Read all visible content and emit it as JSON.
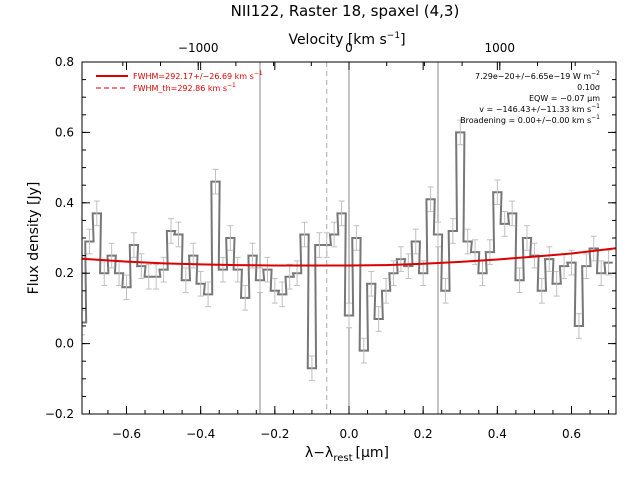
{
  "chart_data": {
    "type": "line",
    "title": "NII122, Raster 18, spaxel (4,3)",
    "xlabel": "λ−λ",
    "xlabel_sub": "rest",
    "xlabel_unit": "[μm]",
    "ylabel": "Flux density [Jy]",
    "top_axis_label": "Velocity [km s",
    "top_axis_label_sup": "−1",
    "top_axis_label_end": "]",
    "xlim": [
      -0.72,
      0.72
    ],
    "ylim": [
      -0.2,
      0.8
    ],
    "grid": false,
    "x_ticks": [
      -0.6,
      -0.4,
      -0.2,
      0.0,
      0.2,
      0.4,
      0.6
    ],
    "x_tick_labels": [
      "−0.6",
      "−0.4",
      "−0.2",
      "0.0",
      "0.2",
      "0.4",
      "0.6"
    ],
    "y_ticks": [
      -0.2,
      0.0,
      0.2,
      0.4,
      0.6,
      0.8
    ],
    "y_tick_labels": [
      "−0.2",
      "0.0",
      "0.2",
      "0.4",
      "0.6",
      "0.8"
    ],
    "top_ticks": [
      -1000,
      0,
      1000
    ],
    "top_tick_labels": [
      "−1000",
      "0",
      "1000"
    ],
    "rest_wavelength_um": 121.9,
    "series": [
      {
        "name": "",
        "style": "histogram with error bars",
        "color": "#777777",
        "bin_width": 0.0225,
        "x": [
          -0.72,
          -0.7,
          -0.68,
          -0.66,
          -0.64,
          -0.62,
          -0.6,
          -0.58,
          -0.56,
          -0.54,
          -0.52,
          -0.5,
          -0.48,
          -0.46,
          -0.44,
          -0.42,
          -0.4,
          -0.38,
          -0.36,
          -0.34,
          -0.32,
          -0.3,
          -0.28,
          -0.26,
          -0.24,
          -0.22,
          -0.2,
          -0.18,
          -0.16,
          -0.14,
          -0.12,
          -0.1,
          -0.08,
          -0.06,
          -0.04,
          -0.02,
          0.0,
          0.02,
          0.04,
          0.06,
          0.08,
          0.1,
          0.12,
          0.14,
          0.16,
          0.18,
          0.2,
          0.22,
          0.24,
          0.26,
          0.28,
          0.3,
          0.32,
          0.34,
          0.36,
          0.38,
          0.4,
          0.42,
          0.44,
          0.46,
          0.48,
          0.5,
          0.52,
          0.54,
          0.56,
          0.58,
          0.6,
          0.62,
          0.64,
          0.66,
          0.68,
          0.7
        ],
        "y": [
          0.06,
          0.29,
          0.37,
          0.2,
          0.25,
          0.2,
          0.16,
          0.28,
          0.22,
          0.19,
          0.19,
          0.21,
          0.32,
          0.31,
          0.18,
          0.25,
          0.17,
          0.14,
          0.46,
          0.21,
          0.3,
          0.21,
          0.13,
          0.25,
          0.18,
          0.21,
          0.15,
          0.14,
          0.19,
          0.2,
          0.31,
          -0.07,
          0.28,
          0.28,
          0.31,
          0.37,
          0.08,
          0.3,
          -0.02,
          0.17,
          0.07,
          0.15,
          0.2,
          0.24,
          0.22,
          0.29,
          0.2,
          0.41,
          0.31,
          0.15,
          0.32,
          0.6,
          0.29,
          0.26,
          0.2,
          0.26,
          0.43,
          0.34,
          0.37,
          0.18,
          0.3,
          0.25,
          0.15,
          0.24,
          0.17,
          0.22,
          0.23,
          0.05,
          0.22,
          0.27,
          0.2,
          0.23
        ],
        "yerr": 0.035
      },
      {
        "name": "FWHM=292.17+/−26.69 km s",
        "name_sup": "−1",
        "style": "fit",
        "color": "#dd0000",
        "x": [
          -0.72,
          -0.6,
          -0.5,
          -0.4,
          -0.3,
          -0.2,
          -0.1,
          0.0,
          0.1,
          0.2,
          0.3,
          0.4,
          0.5,
          0.6,
          0.72
        ],
        "y": [
          0.241,
          0.233,
          0.228,
          0.225,
          0.223,
          0.222,
          0.222,
          0.222,
          0.223,
          0.227,
          0.232,
          0.239,
          0.247,
          0.256,
          0.271
        ]
      }
    ],
    "legend": {
      "placement": "top-left",
      "entries": [
        {
          "label": "FWHM=292.17+/−26.69 km s",
          "sup": "−1",
          "color": "#dd0000",
          "style": "solid"
        },
        {
          "label": "FWHM_th=292.86 km s",
          "sup": "−1",
          "color": "#dd0000",
          "style": "dashed"
        }
      ]
    },
    "annotations": [
      {
        "text": "7.29e−20+/−6.65e−19 W m",
        "sup": "−2"
      },
      {
        "text": "0.10σ",
        "sup": ""
      },
      {
        "text": "EQW = −0.07 μm",
        "sup": ""
      },
      {
        "text": "v = −146.43+/−11.33 km s",
        "sup": "−1"
      },
      {
        "text": "Broadening = 0.00+/−0.00 km s",
        "sup": "−1"
      }
    ],
    "reference_lines": [
      {
        "x": -0.24,
        "style": "solid",
        "color": "#888888"
      },
      {
        "x": -0.06,
        "style": "dashed",
        "color": "#aaaaaa"
      },
      {
        "x": 0.0,
        "style": "solid",
        "color": "#888888"
      },
      {
        "x": 0.24,
        "style": "solid",
        "color": "#888888"
      }
    ]
  }
}
